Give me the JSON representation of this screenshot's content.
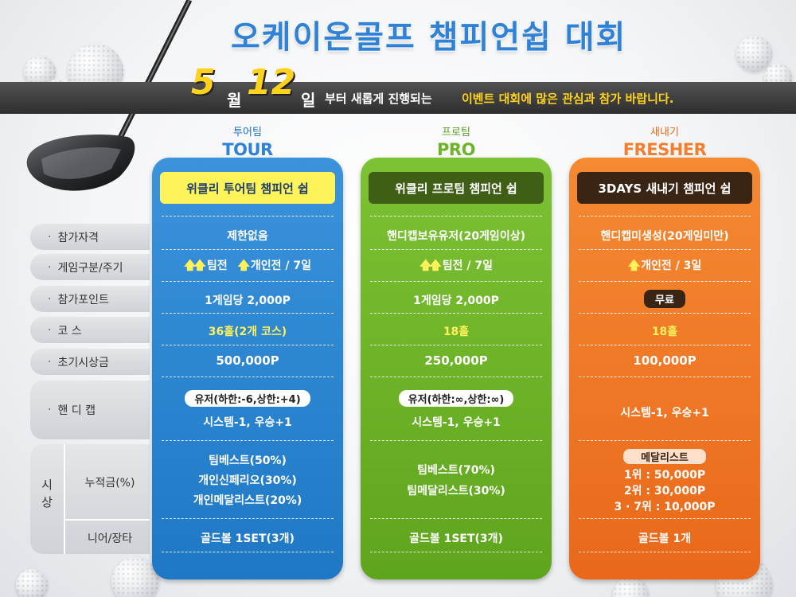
{
  "header": {
    "title": "오케이온골프 챔피언쉽 대회",
    "banner": {
      "month_num": "5",
      "month_unit": "월",
      "day_num": "12",
      "day_unit": "일",
      "text_white": "부터 새롭게 진행되는",
      "text_yellow": "이벤트 대회에 많은 관심과 참가 바랍니다."
    }
  },
  "teams": [
    {
      "hand": "투어팀",
      "name": "TOUR",
      "hand_color": "#1f6fb8",
      "name_color": "#2f82d6"
    },
    {
      "hand": "프로팀",
      "name": "PRO",
      "hand_color": "#5b9e1f",
      "name_color": "#6fb32a"
    },
    {
      "hand": "새내기",
      "name": "FRESHER",
      "hand_color": "#e06b1a",
      "name_color": "#f08030"
    }
  ],
  "row_labels": {
    "qual": "참가자격",
    "type": "게임구분/주기",
    "points": "참가포인트",
    "course": "코 스",
    "prize_init": "초기시상금",
    "handicap": "핸 디 캡",
    "prize": "시 상",
    "cumulative": "누적금(%)",
    "near": "니어/장타"
  },
  "columns": [
    {
      "header": "위클리 투어팀 챔피언 쉽",
      "qual": "제한없음",
      "type_icons": "team-icon, individual-icon",
      "type_team": "팀전",
      "type_indiv": "개인전 / 7일",
      "points": "1게임당 2,000P",
      "course": "36홀(2개 코스)",
      "prize_init": "500,000P",
      "handicap_pill": "유저(하한:-6,상한:+4)",
      "handicap_sys": "시스템-1, 우승+1",
      "cum1": "팀베스트(50%)",
      "cum2": "개인신페리오(30%)",
      "cum3": "개인메달리스트(20%)",
      "near": "골드볼 1SET(3개)"
    },
    {
      "header": "위클리 프로팀 챔피언 쉽",
      "qual": "핸디캡보유유저(20게임이상)",
      "type_team": "팀전 / 7일",
      "points": "1게임당 2,000P",
      "course": "18홀",
      "prize_init": "250,000P",
      "handicap_pill": "유저(하한:∞,상한:∞)",
      "handicap_sys": "시스템-1, 우승+1",
      "cum1": "팀베스트(70%)",
      "cum2": "팀메달리스트(30%)",
      "near": "골드볼 1SET(3개)"
    },
    {
      "header": "3DAYS 새내기 챔피언 쉽",
      "qual": "핸디캡미생성(20게임미만)",
      "type_indiv": "개인전 / 3일",
      "points": "무료",
      "course": "18홀",
      "prize_init": "100,000P",
      "handicap_sys": "시스템-1, 우승+1",
      "medal_label": "메달리스트",
      "medal1": "1위 : 50,000P",
      "medal2": "2위 : 30,000P",
      "medal3": "3 · 7위 : 10,000P",
      "near": "골드볼 1개"
    }
  ]
}
